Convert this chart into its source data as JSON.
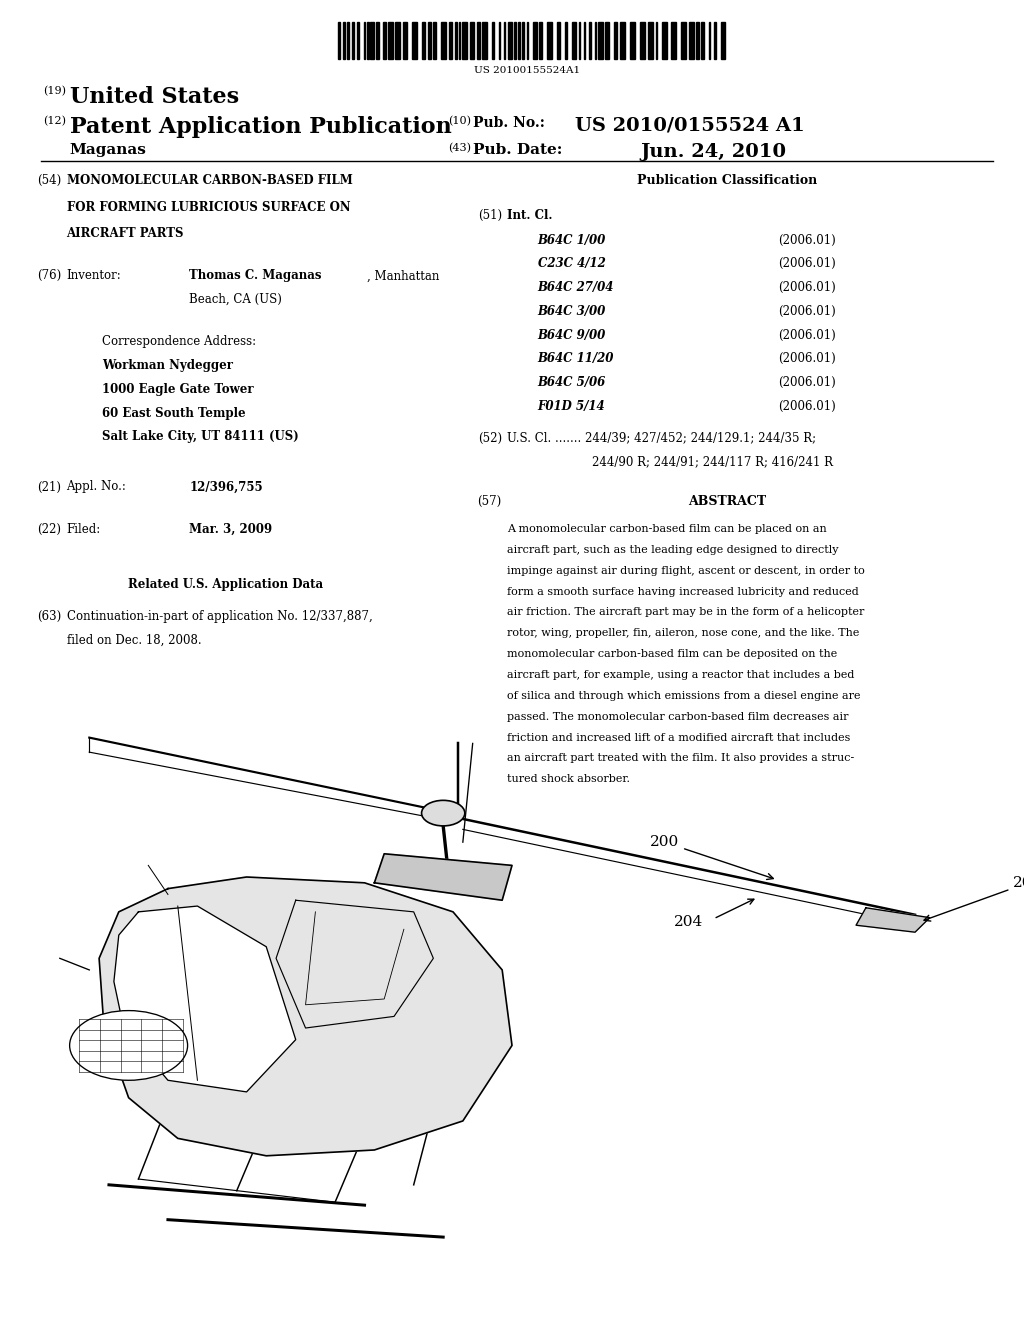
{
  "background_color": "#ffffff",
  "barcode_text": "US 20100155524A1",
  "header": {
    "label19": "(19)",
    "united_states": "United States",
    "label12": "(12)",
    "patent_app_pub": "Patent Application Publication",
    "label10": "(10)",
    "pub_no_label": "Pub. No.:",
    "pub_no_value": "US 2010/0155524 A1",
    "inventor_name": "Maganas",
    "label43": "(43)",
    "pub_date_label": "Pub. Date:",
    "pub_date_value": "Jun. 24, 2010"
  },
  "left_col": {
    "title_line1": "MONOMOLECULAR CARBON-BASED FILM",
    "title_line2": "FOR FORMING LUBRICIOUS SURFACE ON",
    "title_line3": "AIRCRAFT PARTS",
    "corr_address": "Correspondence Address:",
    "corr_name": "Workman Nydegger",
    "corr_addr1": "1000 Eagle Gate Tower",
    "corr_addr2": "60 East South Temple",
    "corr_addr3": "Salt Lake City, UT 84111 (US)",
    "appl_no_value": "12/396,755",
    "filed_value": "Mar. 3, 2009",
    "related_header": "Related U.S. Application Data",
    "related_line1": "Continuation-in-part of application No. 12/337,887,",
    "related_line2": "filed on Dec. 18, 2008."
  },
  "right_col": {
    "pub_class_header": "Publication Classification",
    "int_cl_items": [
      [
        "B64C 1/00",
        "(2006.01)"
      ],
      [
        "C23C 4/12",
        "(2006.01)"
      ],
      [
        "B64C 27/04",
        "(2006.01)"
      ],
      [
        "B64C 3/00",
        "(2006.01)"
      ],
      [
        "B64C 9/00",
        "(2006.01)"
      ],
      [
        "B64C 11/20",
        "(2006.01)"
      ],
      [
        "B64C 5/06",
        "(2006.01)"
      ],
      [
        "F01D 5/14",
        "(2006.01)"
      ]
    ],
    "us_cl_line1": "U.S. Cl. ....... 244/39; 427/452; 244/129.1; 244/35 R;",
    "us_cl_line2": "244/90 R; 244/91; 244/117 R; 416/241 R",
    "abstract_header": "ABSTRACT",
    "abstract_lines": [
      "A monomolecular carbon-based film can be placed on an",
      "aircraft part, such as the leading edge designed to directly",
      "impinge against air during flight, ascent or descent, in order to",
      "form a smooth surface having increased lubricity and reduced",
      "air friction. The aircraft part may be in the form of a helicopter",
      "rotor, wing, propeller, fin, aileron, nose cone, and the like. The",
      "monomolecular carbon-based film can be deposited on the",
      "aircraft part, for example, using a reactor that includes a bed",
      "of silica and through which emissions from a diesel engine are",
      "passed. The monomolecular carbon-based film decreases air",
      "friction and increased lift of a modified aircraft that includes",
      "an aircraft part treated with the film. It also provides a struc-",
      "tured shock absorber."
    ]
  }
}
